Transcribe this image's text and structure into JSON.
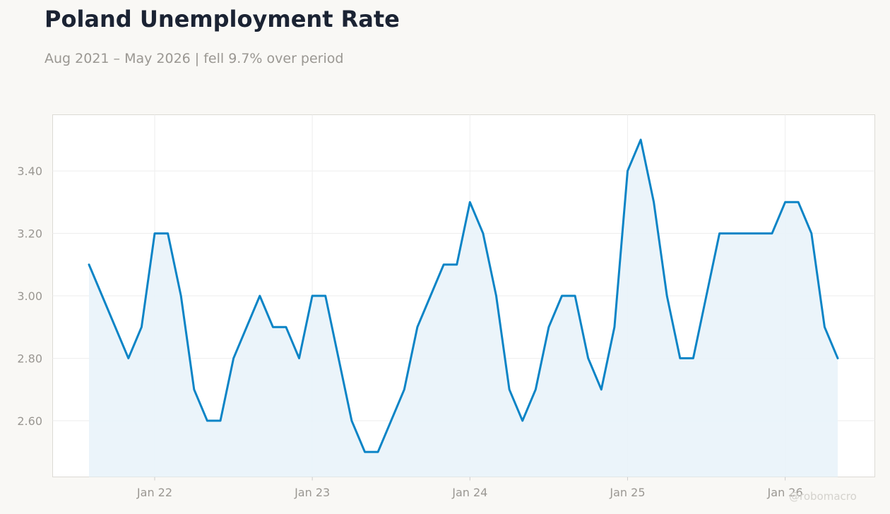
{
  "header": {
    "title": "Poland Unemployment Rate",
    "subtitle": "Aug 2021 – May 2026 | fell 9.7% over period"
  },
  "watermark": "@robomacro",
  "colors": {
    "line": "#0b84c6",
    "fill": "#e9f3fa",
    "grid": "#eeeeee",
    "axis_text": "#9a9792",
    "title": "#1b2333"
  },
  "chart_data": {
    "type": "area",
    "title": "Poland Unemployment Rate",
    "subtitle": "Aug 2021 – May 2026 | fell 9.7% over period",
    "xlabel": "",
    "ylabel": "",
    "grid": true,
    "legend": "none",
    "x_start": "2021-08",
    "x_end": "2026-05",
    "ylim": [
      2.42,
      3.58
    ],
    "y_ticks": [
      2.6,
      2.8,
      3.0,
      3.2,
      3.4
    ],
    "y_tick_labels": [
      "2.60",
      "2.80",
      "3.00",
      "3.20",
      "3.40"
    ],
    "x_ticks": [
      "2022-01",
      "2023-01",
      "2024-01",
      "2025-01",
      "2026-01"
    ],
    "x_tick_labels": [
      "Jan 22",
      "Jan 23",
      "Jan 24",
      "Jan 25",
      "Jan 26"
    ],
    "series": [
      {
        "dates": [
          "2021-08",
          "2021-09",
          "2021-10",
          "2021-11",
          "2021-12",
          "2022-01",
          "2022-02",
          "2022-03",
          "2022-04",
          "2022-05",
          "2022-06",
          "2022-07",
          "2022-08",
          "2022-09",
          "2022-10",
          "2022-11",
          "2022-12",
          "2023-01",
          "2023-02",
          "2023-03",
          "2023-04",
          "2023-05",
          "2023-06",
          "2023-07",
          "2023-08",
          "2023-09",
          "2023-10",
          "2023-11",
          "2023-12",
          "2024-01",
          "2024-02",
          "2024-03",
          "2024-04",
          "2024-05",
          "2024-06",
          "2024-07",
          "2024-08",
          "2024-09",
          "2024-10",
          "2024-11",
          "2024-12",
          "2025-01",
          "2025-02",
          "2025-03",
          "2025-04",
          "2025-05",
          "2025-06",
          "2025-07",
          "2025-08",
          "2025-09",
          "2025-10",
          "2025-11",
          "2025-12",
          "2026-01",
          "2026-02",
          "2026-03",
          "2026-04",
          "2026-05"
        ],
        "values": [
          3.1,
          3.0,
          2.9,
          2.8,
          2.9,
          3.2,
          3.2,
          3.0,
          2.7,
          2.6,
          2.6,
          2.8,
          2.9,
          3.0,
          2.9,
          2.9,
          2.8,
          3.0,
          3.0,
          2.8,
          2.6,
          2.5,
          2.5,
          2.6,
          2.7,
          2.9,
          3.0,
          3.1,
          3.1,
          3.3,
          3.2,
          3.0,
          2.7,
          2.6,
          2.7,
          2.9,
          3.0,
          3.0,
          2.8,
          2.7,
          2.9,
          3.4,
          3.5,
          3.3,
          3.0,
          2.8,
          2.8,
          3.0,
          3.2,
          3.2,
          3.2,
          3.2,
          3.2,
          3.3,
          3.3,
          3.2,
          2.9,
          2.8
        ]
      }
    ]
  }
}
